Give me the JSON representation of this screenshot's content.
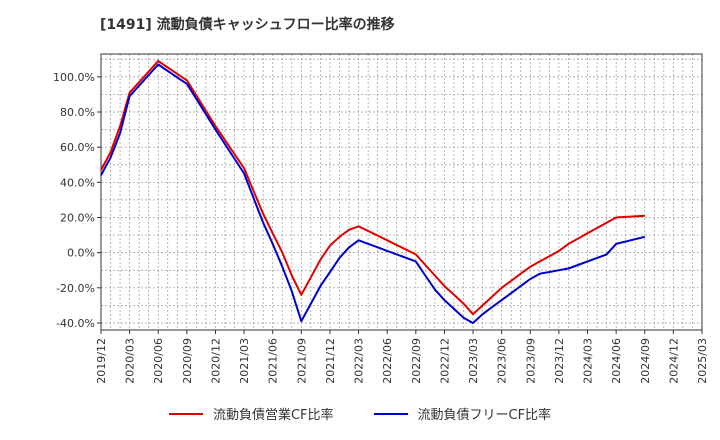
{
  "chart_data": {
    "type": "line",
    "title": "[1491]  流動負債キャッシュフロー比率の推移",
    "x_ticks": [
      "2019/12",
      "2020/03",
      "2020/06",
      "2020/09",
      "2020/12",
      "2021/03",
      "2021/06",
      "2021/09",
      "2021/12",
      "2022/03",
      "2022/06",
      "2022/09",
      "2022/12",
      "2023/03",
      "2023/06",
      "2023/09",
      "2023/12",
      "2024/03",
      "2024/06",
      "2024/09",
      "2024/12",
      "2025/03"
    ],
    "y_ticks": [
      "100.0%",
      "80.0%",
      "60.0%",
      "40.0%",
      "20.0%",
      "0.0%",
      "-20.0%",
      "-40.0%"
    ],
    "ylim": [
      -44,
      113
    ],
    "grid": true,
    "legend_position": "bottom",
    "x": [
      "2019/12",
      "2020/01",
      "2020/02",
      "2020/03",
      "2020/06",
      "2020/09",
      "2020/12",
      "2021/03",
      "2021/04",
      "2021/05",
      "2021/06",
      "2021/07",
      "2021/08",
      "2021/09",
      "2021/10",
      "2021/11",
      "2021/12",
      "2022/01",
      "2022/02",
      "2022/03",
      "2022/06",
      "2022/09",
      "2022/10",
      "2022/11",
      "2022/12",
      "2023/01",
      "2023/02",
      "2023/03",
      "2023/04",
      "2023/05",
      "2023/06",
      "2023/07",
      "2023/08",
      "2023/09",
      "2023/10",
      "2023/11",
      "2023/12",
      "2024/01",
      "2024/02",
      "2024/03",
      "2024/04",
      "2024/05",
      "2024/06",
      "2024/09"
    ],
    "series": [
      {
        "name": "流動負債営業CF比率",
        "color": "#e00000",
        "values": [
          47,
          57,
          72,
          91,
          109,
          98,
          72,
          48,
          35,
          22,
          11,
          0,
          -13,
          -24,
          -14,
          -4,
          4,
          9,
          13,
          15,
          7,
          -1,
          -7,
          -13,
          -19,
          -24,
          -29,
          -35,
          -30,
          -25,
          -20,
          -16,
          -12,
          -8,
          -5,
          -2,
          1,
          5,
          8,
          11,
          14,
          17,
          20,
          21
        ]
      },
      {
        "name": "流動負債フリーCF比率",
        "color": "#0000cc",
        "values": [
          44,
          54,
          68,
          89,
          107,
          96,
          70,
          45,
          31,
          17,
          5,
          -8,
          -22,
          -39,
          -29,
          -19,
          -11,
          -3,
          3,
          7,
          1,
          -5,
          -13,
          -21,
          -27,
          -32,
          -37,
          -40,
          -35,
          -31,
          -27,
          -23,
          -19,
          -15,
          -12,
          -11,
          -10,
          -9,
          -7,
          -5,
          -3,
          -1,
          5,
          9
        ]
      }
    ]
  }
}
